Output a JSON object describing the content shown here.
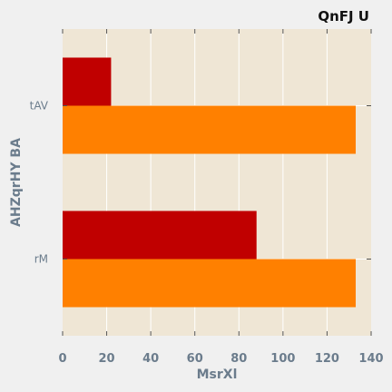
{
  "chart_data": {
    "type": "bar",
    "orientation": "horizontal",
    "title": "QnFJ U",
    "xlabel": "MsrXl",
    "ylabel": "AHZqrHY BA",
    "categories": [
      "rM",
      "tAV"
    ],
    "series": [
      {
        "values": [
          133,
          133
        ],
        "color": "#ff8000"
      },
      {
        "values": [
          88,
          22
        ],
        "color": "#c00000"
      }
    ],
    "xlim": [
      0,
      140
    ],
    "xticks": [
      0,
      20,
      40,
      60,
      80,
      100,
      120,
      140
    ],
    "grid": true,
    "plot_background": "#efe6d5",
    "grid_color": "#ffffff",
    "legend": false
  }
}
